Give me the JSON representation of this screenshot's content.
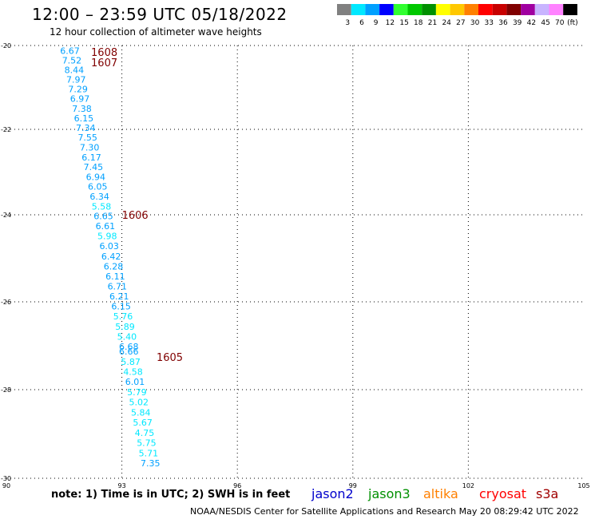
{
  "header": {
    "title": "12:00 – 23:59 UTC 05/18/2022",
    "subtitle": "12 hour collection of altimeter wave heights"
  },
  "legend": {
    "unit": "(ft)",
    "bins": [
      {
        "label": "3",
        "color": "#808080"
      },
      {
        "label": "6",
        "color": "#00e8ff"
      },
      {
        "label": "9",
        "color": "#00a0ff"
      },
      {
        "label": "12",
        "color": "#0000ff"
      },
      {
        "label": "15",
        "color": "#30ff30"
      },
      {
        "label": "18",
        "color": "#00c800"
      },
      {
        "label": "21",
        "color": "#009000"
      },
      {
        "label": "24",
        "color": "#ffff00"
      },
      {
        "label": "27",
        "color": "#ffc800"
      },
      {
        "label": "30",
        "color": "#ff8000"
      },
      {
        "label": "33",
        "color": "#ff0000"
      },
      {
        "label": "36",
        "color": "#c80000"
      },
      {
        "label": "39",
        "color": "#800000"
      },
      {
        "label": "42",
        "color": "#a000a0"
      },
      {
        "label": "45",
        "color": "#c8b4ff"
      },
      {
        "label": "70",
        "color": "#ff82ff"
      },
      {
        "label": "",
        "color": "#000000"
      }
    ]
  },
  "footer": {
    "note": "note:  1) Time is in UTC;  2) SWH is in feet",
    "credit": "NOAA/NESDIS Center for Satellite Applications and Research     May 20 08:29:42 UTC 2022",
    "satellites": [
      {
        "name": "jason2",
        "color": "#0000cc"
      },
      {
        "name": "jason3",
        "color": "#009000"
      },
      {
        "name": "altika",
        "color": "#ff8000"
      },
      {
        "name": "cryosat",
        "color": "#ff0000"
      },
      {
        "name": "s3a",
        "color": "#a00000"
      }
    ]
  },
  "chart_data": {
    "type": "scatter",
    "title": "12:00 – 23:59 UTC 05/18/2022",
    "subtitle": "12 hour collection of altimeter wave heights",
    "xlim": [
      90,
      105
    ],
    "ylim": [
      -30,
      -20
    ],
    "xticks": [
      90,
      93,
      96,
      99,
      102,
      105
    ],
    "yticks": [
      -20,
      -22,
      -24,
      -26,
      -28,
      -30
    ],
    "grid": true,
    "colors": {
      "6ft": "#00e8ff",
      "9ft": "#00a0ff",
      "time": "#800000"
    },
    "time_labels": [
      {
        "text": "1608",
        "lon": 92.2,
        "lat": -20.15
      },
      {
        "text": "1607",
        "lon": 92.2,
        "lat": -20.4
      },
      {
        "text": "1606",
        "lon": 93.0,
        "lat": -24.0
      },
      {
        "text": "1605",
        "lon": 93.9,
        "lat": -27.25
      }
    ],
    "points": [
      {
        "lon": 91.65,
        "lat": -20.12,
        "swh": "6.67"
      },
      {
        "lon": 91.7,
        "lat": -20.35,
        "swh": "7.52"
      },
      {
        "lon": 91.76,
        "lat": -20.58,
        "swh": "8.44"
      },
      {
        "lon": 91.81,
        "lat": -20.81,
        "swh": "7.97"
      },
      {
        "lon": 91.86,
        "lat": -21.04,
        "swh": "7.29"
      },
      {
        "lon": 91.91,
        "lat": -21.27,
        "swh": "6.97"
      },
      {
        "lon": 91.96,
        "lat": -21.5,
        "swh": "7.38"
      },
      {
        "lon": 92.01,
        "lat": -21.73,
        "swh": "6.15"
      },
      {
        "lon": 92.06,
        "lat": -21.96,
        "swh": "7.34"
      },
      {
        "lon": 92.11,
        "lat": -22.19,
        "swh": "7.55"
      },
      {
        "lon": 92.16,
        "lat": -22.42,
        "swh": "7.30"
      },
      {
        "lon": 92.21,
        "lat": -22.65,
        "swh": "6.17"
      },
      {
        "lon": 92.26,
        "lat": -22.88,
        "swh": "7.45"
      },
      {
        "lon": 92.32,
        "lat": -23.11,
        "swh": "6.94"
      },
      {
        "lon": 92.37,
        "lat": -23.34,
        "swh": "6.05"
      },
      {
        "lon": 92.42,
        "lat": -23.57,
        "swh": "6.34"
      },
      {
        "lon": 92.47,
        "lat": -23.8,
        "swh": "5.58"
      },
      {
        "lon": 92.52,
        "lat": -24.03,
        "swh": "6.65"
      },
      {
        "lon": 92.57,
        "lat": -24.26,
        "swh": "6.61"
      },
      {
        "lon": 92.62,
        "lat": -24.49,
        "swh": "5.98"
      },
      {
        "lon": 92.67,
        "lat": -24.72,
        "swh": "6.03"
      },
      {
        "lon": 92.72,
        "lat": -24.95,
        "swh": "6.42"
      },
      {
        "lon": 92.78,
        "lat": -25.18,
        "swh": "6.28"
      },
      {
        "lon": 92.83,
        "lat": -25.41,
        "swh": "6.11"
      },
      {
        "lon": 92.88,
        "lat": -25.64,
        "swh": "6.71"
      },
      {
        "lon": 92.93,
        "lat": -25.87,
        "swh": "6.21"
      },
      {
        "lon": 92.98,
        "lat": -26.1,
        "swh": "6.15"
      },
      {
        "lon": 93.03,
        "lat": -26.33,
        "swh": "5.76"
      },
      {
        "lon": 93.08,
        "lat": -26.56,
        "swh": "5.89"
      },
      {
        "lon": 93.13,
        "lat": -26.79,
        "swh": "5.40"
      },
      {
        "lon": 93.18,
        "lat": -27.02,
        "swh": "6.68"
      },
      {
        "lon": 93.18,
        "lat": -27.13,
        "swh": "6.66"
      },
      {
        "lon": 93.23,
        "lat": -27.36,
        "swh": "5.87"
      },
      {
        "lon": 93.29,
        "lat": -27.59,
        "swh": "4.58"
      },
      {
        "lon": 93.34,
        "lat": -27.82,
        "swh": "6.01"
      },
      {
        "lon": 93.39,
        "lat": -28.05,
        "swh": "5.79"
      },
      {
        "lon": 93.44,
        "lat": -28.28,
        "swh": "5.02"
      },
      {
        "lon": 93.49,
        "lat": -28.51,
        "swh": "5.84"
      },
      {
        "lon": 93.54,
        "lat": -28.74,
        "swh": "5.67"
      },
      {
        "lon": 93.59,
        "lat": -28.97,
        "swh": "4.75"
      },
      {
        "lon": 93.64,
        "lat": -29.2,
        "swh": "5.75"
      },
      {
        "lon": 93.69,
        "lat": -29.43,
        "swh": "5.71"
      },
      {
        "lon": 93.74,
        "lat": -29.66,
        "swh": "7.35"
      }
    ]
  }
}
